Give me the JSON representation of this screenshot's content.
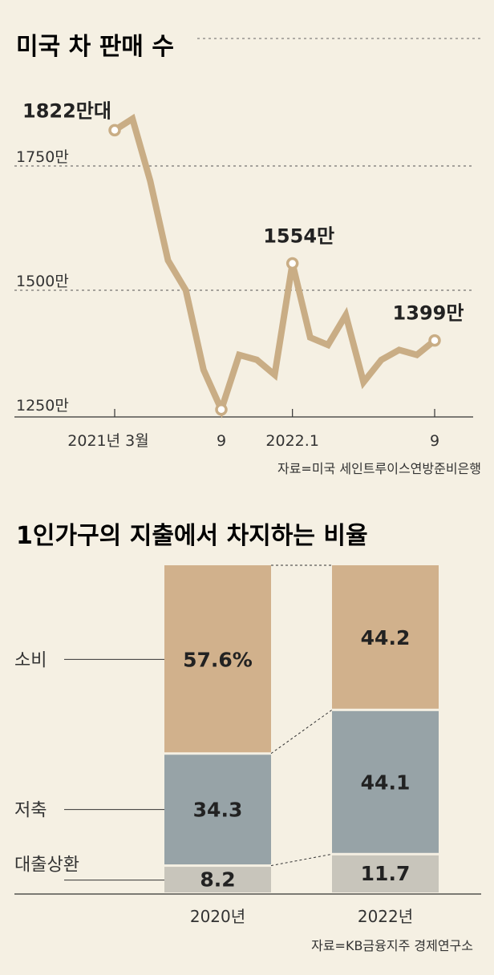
{
  "chart_data": [
    {
      "type": "line",
      "title": "미국 차 판매 수",
      "source": "자료=미국 세인트루이스연방준비은행",
      "x_tick_labels": [
        "2021년 3월",
        "9",
        "2022.1",
        "9"
      ],
      "y_tick_labels": [
        "1750만",
        "1500만",
        "1250만"
      ],
      "y_ticks": [
        1750,
        1500,
        1250
      ],
      "ylim": [
        1230,
        1900
      ],
      "x": [
        "2021-03",
        "2021-04",
        "2021-05",
        "2021-06",
        "2021-07",
        "2021-08",
        "2021-09",
        "2021-10",
        "2021-11",
        "2021-12",
        "2022-01",
        "2022-02",
        "2022-03",
        "2022-04",
        "2022-05",
        "2022-06",
        "2022-07",
        "2022-08",
        "2022-09"
      ],
      "values": [
        1822,
        1845,
        1720,
        1560,
        1500,
        1340,
        1260,
        1370,
        1360,
        1330,
        1554,
        1405,
        1390,
        1450,
        1315,
        1360,
        1380,
        1370,
        1399
      ],
      "annotations": [
        {
          "index": 0,
          "label": "1822만대"
        },
        {
          "index": 10,
          "label": "1554만"
        },
        {
          "index": 18,
          "label": "1399만"
        }
      ],
      "color": "#c9ad85"
    },
    {
      "type": "bar",
      "stacked": true,
      "title": "1인가구의 지출에서 차지하는 비율",
      "source": "자료=KB금융지주 경제연구소",
      "categories": [
        "2020년",
        "2022년"
      ],
      "series": [
        {
          "name": "대출상환",
          "values": [
            8.2,
            11.7
          ],
          "labels": [
            "8.2",
            "11.7"
          ],
          "color": "#c8c5bb"
        },
        {
          "name": "저축",
          "values": [
            34.3,
            44.1
          ],
          "labels": [
            "34.3",
            "44.1"
          ],
          "color": "#97a3a7"
        },
        {
          "name": "소비",
          "values": [
            57.6,
            44.2
          ],
          "labels": [
            "57.6%",
            "44.2"
          ],
          "color": "#d1b18c"
        }
      ]
    }
  ]
}
